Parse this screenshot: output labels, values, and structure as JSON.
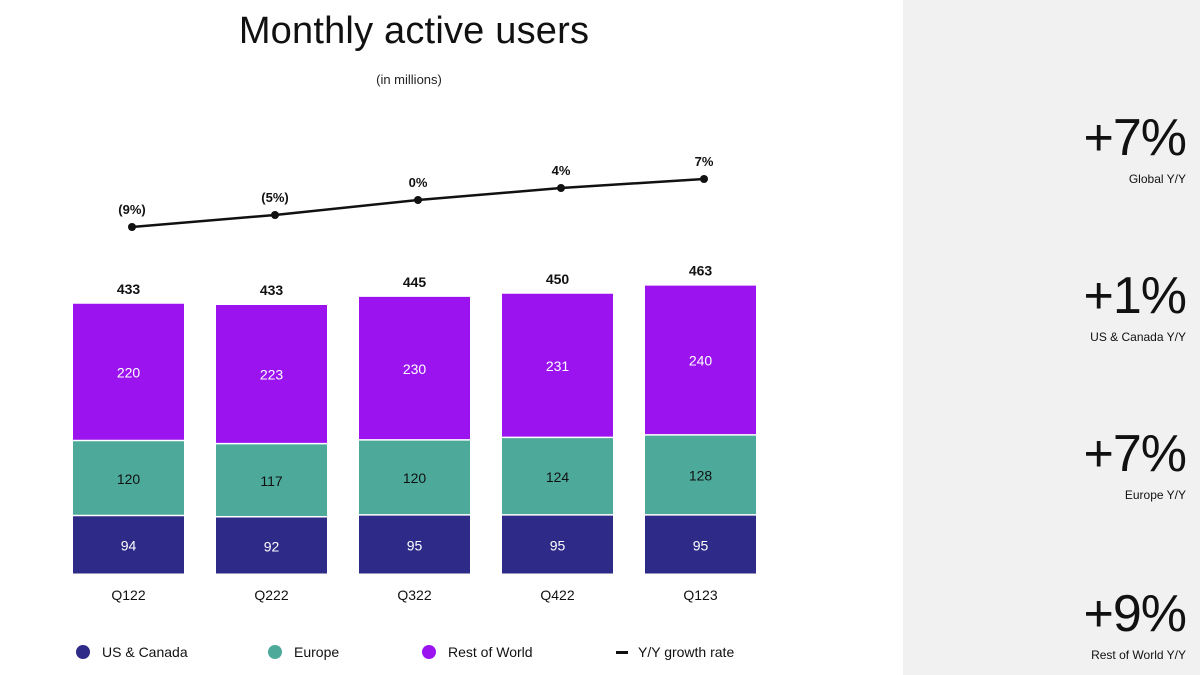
{
  "title": "Monthly active users",
  "subtitle": "(in millions)",
  "colors": {
    "us_canada": "#2e2a87",
    "europe": "#4daa9b",
    "rest_of_world": "#9b14f0",
    "line": "#111111",
    "panel": "#f1f1f1"
  },
  "chart_data": {
    "type": "bar",
    "stacked": true,
    "categories": [
      "Q122",
      "Q222",
      "Q322",
      "Q422",
      "Q123"
    ],
    "series": [
      {
        "name": "US & Canada",
        "values": [
          94,
          92,
          95,
          95,
          95
        ]
      },
      {
        "name": "Europe",
        "values": [
          120,
          117,
          120,
          124,
          128
        ]
      },
      {
        "name": "Rest of World",
        "values": [
          220,
          223,
          230,
          231,
          240
        ]
      }
    ],
    "totals": [
      433,
      433,
      445,
      450,
      463
    ],
    "line_series": {
      "name": "Y/Y growth rate",
      "values": [
        -9,
        -5,
        0,
        4,
        7
      ],
      "labels": [
        "(9%)",
        "(5%)",
        "0%",
        "4%",
        "7%"
      ]
    },
    "legend": [
      "US & Canada",
      "Europe",
      "Rest of World",
      "Y/Y growth rate"
    ],
    "legend_position": "bottom",
    "grid": false
  },
  "stats": [
    {
      "value": "+7%",
      "label": "Global Y/Y"
    },
    {
      "value": "+1%",
      "label": "US & Canada Y/Y"
    },
    {
      "value": "+7%",
      "label": "Europe Y/Y"
    },
    {
      "value": "+9%",
      "label": "Rest of World Y/Y"
    }
  ]
}
